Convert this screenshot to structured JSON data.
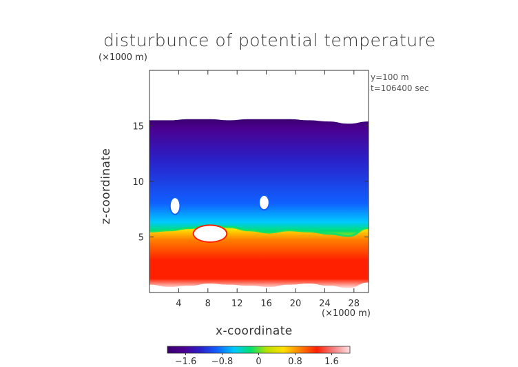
{
  "figure": {
    "title": "disturbunce of potential temperature",
    "y_unit_label": "(×1000 m)",
    "x_unit_label": "(×1000 m)",
    "info_lines": [
      "y=100 m",
      "t=106400 sec"
    ]
  },
  "colors": {
    "colormap": [
      "#3a0070",
      "#4b0090",
      "#2a20c8",
      "#1060ff",
      "#00c8ff",
      "#00e070",
      "#b8e000",
      "#ffe000",
      "#ff8000",
      "#ff2000",
      "#f08080",
      "#ffe0e0"
    ],
    "zero_color": "#ffffff"
  },
  "chart_data": {
    "type": "heatmap",
    "title": "disturbunce of potential temperature",
    "xlabel": "x-coordinate",
    "ylabel": "z-coordinate",
    "xlim": [
      0,
      30
    ],
    "ylim": [
      0,
      20
    ],
    "x_ticks": [
      4,
      8,
      12,
      16,
      20,
      24,
      28
    ],
    "y_ticks": [
      5,
      10,
      15
    ],
    "grid": false,
    "colorbar": {
      "range": [
        -2.0,
        2.0
      ],
      "ticks": [
        -1.6,
        -0.8,
        0,
        0.8,
        1.6
      ],
      "tick_labels": [
        "−1.6",
        "−0.8",
        "0",
        "0.8",
        "1.6"
      ],
      "placement": "bottom"
    },
    "fields": {
      "negative_region_top_z": [
        15.5,
        15.5,
        15.6,
        15.6,
        15.5,
        15.6,
        15.6,
        15.6,
        15.5,
        15.4,
        15.2,
        15.4
      ],
      "interface_z": [
        5.5,
        5.6,
        5.8,
        6.0,
        5.9,
        5.6,
        5.4,
        5.6,
        5.5,
        5.3,
        5.1,
        5.8
      ],
      "positive_region_bottom_z": [
        0.7,
        0.5,
        0.6,
        0.8,
        0.7,
        0.6,
        0.5,
        0.7,
        0.8,
        0.6,
        0.4,
        0.9
      ],
      "white_blobs": [
        {
          "x": 3.5,
          "z": 7.8,
          "rx": 0.6,
          "rz": 0.7
        },
        {
          "x": 15.7,
          "z": 8.1,
          "rx": 0.6,
          "rz": 0.6
        },
        {
          "x": 8.3,
          "z": 5.3,
          "rx": 2.2,
          "rz": 0.7
        }
      ]
    }
  }
}
